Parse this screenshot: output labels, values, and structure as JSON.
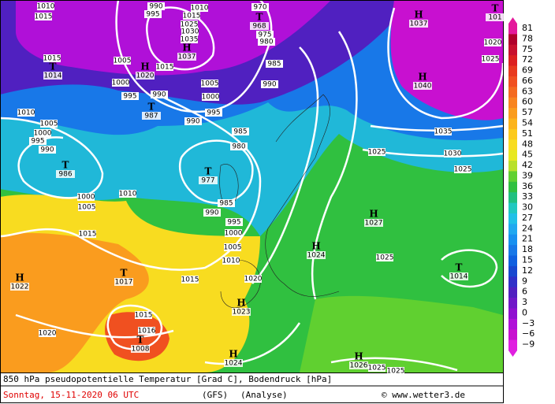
{
  "legend": {
    "labels": [
      "81",
      "78",
      "75",
      "72",
      "69",
      "66",
      "63",
      "60",
      "57",
      "54",
      "51",
      "48",
      "45",
      "42",
      "39",
      "36",
      "33",
      "30",
      "27",
      "24",
      "21",
      "18",
      "15",
      "12",
      "9",
      "6",
      "3",
      "0",
      "−3",
      "−6",
      "−9"
    ],
    "colors": [
      "#e4199b",
      "#b0002b",
      "#c8102e",
      "#dc2020",
      "#e83a1e",
      "#f05020",
      "#f46a20",
      "#f88420",
      "#fa9c1e",
      "#fcb41c",
      "#fcca1c",
      "#f8dc20",
      "#e8e820",
      "#b8e02a",
      "#60d030",
      "#30c040",
      "#20c080",
      "#20c8c0",
      "#20c0e8",
      "#20a8f0",
      "#1890f0",
      "#1878e8",
      "#1060e0",
      "#1848d0",
      "#3030c8",
      "#5020c0",
      "#7018c8",
      "#9010d0",
      "#b010d8",
      "#c810d0",
      "#e020e0"
    ]
  },
  "footer": {
    "parameter": "850 hPa pseudopotentielle Temperatur [Grad C], Bodendruck [hPa]",
    "date": "Sonntag, 15-11-2020  06 UTC",
    "model": "(GFS)",
    "run": "(Analyse)",
    "copyright": "© www.wetter3.de"
  },
  "centers": [
    {
      "type": "H",
      "pressure": 1037
    },
    {
      "type": "T",
      "pressure": 101
    },
    {
      "type": "H",
      "pressure": 1040
    },
    {
      "type": "T",
      "pressure": 1014
    },
    {
      "type": "H",
      "pressure": 1020
    },
    {
      "type": "H",
      "pressure": 1037
    },
    {
      "type": "T",
      "pressure": 968
    },
    {
      "type": "T",
      "pressure": 987
    },
    {
      "type": "T",
      "pressure": 986
    },
    {
      "type": "T",
      "pressure": 977
    },
    {
      "type": "H",
      "pressure": 1027
    },
    {
      "type": "H",
      "pressure": 1024
    },
    {
      "type": "T",
      "pressure": 1014
    },
    {
      "type": "H",
      "pressure": 1022
    },
    {
      "type": "T",
      "pressure": 1017
    },
    {
      "type": "H",
      "pressure": 1023
    },
    {
      "type": "T",
      "pressure": 1008
    },
    {
      "type": "H",
      "pressure": 1024
    },
    {
      "type": "H",
      "pressure": 1026
    }
  ],
  "isobar_labels": [
    1010,
    1015,
    990,
    995,
    1010,
    1015,
    1025,
    1030,
    1035,
    970,
    975,
    980,
    985,
    990,
    1005,
    1000,
    995,
    990,
    1015,
    1005,
    1000,
    995,
    990,
    1015,
    1010,
    1005,
    1000,
    995,
    990,
    985,
    980,
    1025,
    1030,
    1035,
    1025,
    1020,
    1025,
    1010,
    1000,
    1005,
    1015,
    985,
    990,
    995,
    1000,
    1005,
    1010,
    1015,
    1020,
    1025,
    1015,
    1016,
    1020,
    1025,
    1025
  ]
}
